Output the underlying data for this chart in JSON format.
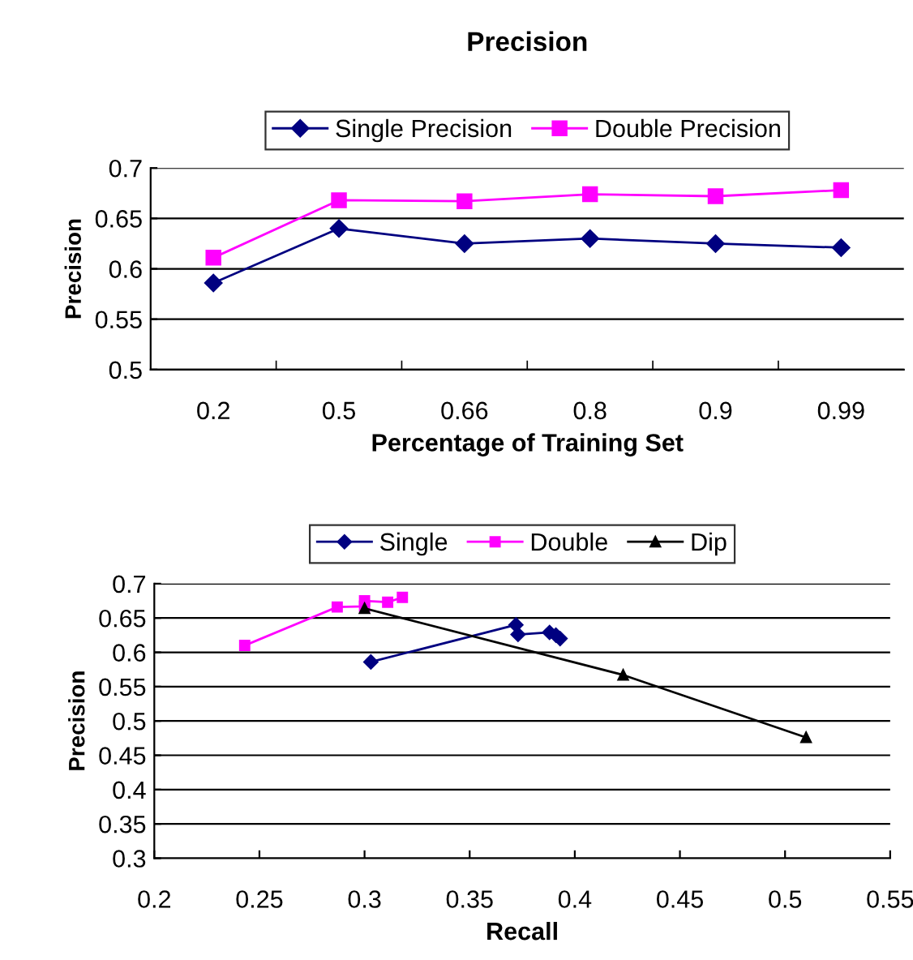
{
  "chart_data": [
    {
      "type": "line",
      "title": "Precision",
      "xlabel": "Percentage of Training Set",
      "ylabel": "Precision",
      "categories": [
        "0.2",
        "0.5",
        "0.66",
        "0.8",
        "0.9",
        "0.99"
      ],
      "ylim": [
        0.5,
        0.7
      ],
      "yticks": [
        0.5,
        0.55,
        0.6,
        0.65,
        0.7
      ],
      "grid": "y",
      "legend": "top",
      "series": [
        {
          "name": "Single Precision",
          "color": "#000080",
          "marker": "diamond",
          "values": [
            0.586,
            0.64,
            0.625,
            0.63,
            0.625,
            0.621
          ]
        },
        {
          "name": "Double Precision",
          "color": "#ff00ff",
          "marker": "square",
          "values": [
            0.611,
            0.668,
            0.667,
            0.674,
            0.672,
            0.678
          ]
        }
      ]
    },
    {
      "type": "line",
      "xlabel": "Recall",
      "ylabel": "Precision",
      "xlim": [
        0.2,
        0.55
      ],
      "xticks": [
        0.2,
        0.25,
        0.3,
        0.35,
        0.4,
        0.45,
        0.5,
        0.55
      ],
      "ylim": [
        0.3,
        0.7
      ],
      "yticks": [
        0.3,
        0.35,
        0.4,
        0.45,
        0.5,
        0.55,
        0.6,
        0.65,
        0.7
      ],
      "grid": "y",
      "legend": "top",
      "series": [
        {
          "name": "Single",
          "color": "#000080",
          "marker": "diamond",
          "x": [
            0.303,
            0.372,
            0.373,
            0.388,
            0.391,
            0.393
          ],
          "values": [
            0.586,
            0.64,
            0.626,
            0.629,
            0.625,
            0.62
          ]
        },
        {
          "name": "Double",
          "color": "#ff00ff",
          "marker": "square",
          "x": [
            0.243,
            0.287,
            0.3,
            0.3,
            0.311,
            0.318
          ],
          "values": [
            0.61,
            0.666,
            0.667,
            0.675,
            0.673,
            0.68
          ]
        },
        {
          "name": "Dip",
          "color": "#000000",
          "marker": "triangle",
          "x": [
            0.3,
            0.423,
            0.51
          ],
          "values": [
            0.664,
            0.567,
            0.476
          ]
        }
      ]
    }
  ]
}
